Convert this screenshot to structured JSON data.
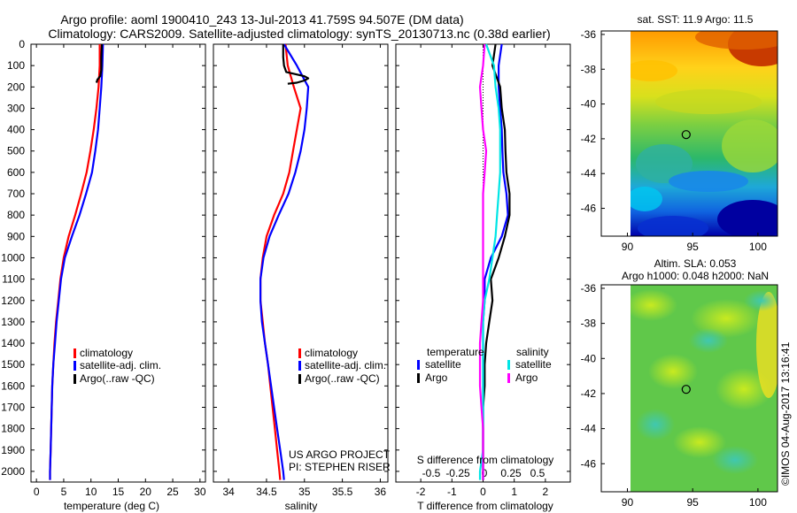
{
  "header": {
    "line1": "Argo profile: aoml 1900410_243 13-Jul-2013 41.759S 94.507E (DM data)",
    "line2": "Climatology: CARS2009. Satellite-adjusted climatology: synTS_20130713.nc (0.38d earlier)"
  },
  "credits": {
    "project": "US ARGO PROJECT",
    "pi": "PI: STEPHEN RISER",
    "watermark": "©IMOS 04-Aug-2017 13:16:41"
  },
  "colors": {
    "climatology": "#ff0000",
    "satellite": "#0000ff",
    "argo": "#000000",
    "argo_salinity": "#ff00ff",
    "satellite_salinity": "#00e5e5"
  },
  "chart_data": [
    {
      "type": "line",
      "xlabel": "temperature (deg C)",
      "xlim": [
        -1,
        31
      ],
      "ylim": [
        2050,
        0
      ],
      "xticks": [
        0,
        5,
        10,
        15,
        20,
        25,
        30
      ],
      "yticks": [
        0,
        100,
        200,
        300,
        400,
        500,
        600,
        700,
        800,
        900,
        1000,
        1100,
        1200,
        1300,
        1400,
        1500,
        1600,
        1700,
        1800,
        1900,
        2000
      ],
      "legend": {
        "placement": "lower-right",
        "entries": [
          "climatology",
          "satellite-adj. clim.",
          "Argo(..raw -QC)"
        ]
      },
      "series": [
        {
          "name": "climatology",
          "color": "#ff0000",
          "x": [
            11.6,
            11.6,
            11.4,
            11.0,
            10.5,
            9.9,
            9.2,
            8.2,
            7.1,
            5.9,
            5.0,
            4.4,
            4.0,
            3.6,
            3.3,
            3.1,
            2.9,
            2.8,
            2.7,
            2.6,
            2.5,
            2.5
          ],
          "y": [
            0,
            100,
            200,
            300,
            400,
            500,
            600,
            700,
            800,
            900,
            1000,
            1100,
            1200,
            1300,
            1400,
            1500,
            1600,
            1700,
            1800,
            1900,
            2000,
            2040
          ]
        },
        {
          "name": "satellite-adj. clim.",
          "color": "#0000ff",
          "x": [
            12.2,
            12.1,
            11.9,
            11.6,
            11.3,
            10.8,
            10.2,
            9.1,
            7.9,
            6.5,
            5.2,
            4.5,
            4.1,
            3.7,
            3.4,
            3.1,
            2.9,
            2.8,
            2.7,
            2.6,
            2.5,
            2.5
          ],
          "y": [
            0,
            100,
            200,
            300,
            400,
            500,
            600,
            700,
            800,
            900,
            1000,
            1100,
            1200,
            1300,
            1400,
            1500,
            1600,
            1700,
            1800,
            1900,
            2000,
            2040
          ]
        },
        {
          "name": "Argo(..raw -QC)",
          "color": "#000000",
          "x": [
            12.0,
            11.9,
            11.9,
            11.7,
            11.5,
            11.4,
            11.2,
            11.0
          ],
          "y": [
            0,
            60,
            120,
            150,
            155,
            160,
            165,
            180
          ]
        }
      ]
    },
    {
      "type": "line",
      "xlabel": "salinity",
      "xlim": [
        33.8,
        36.1
      ],
      "ylim": [
        2050,
        0
      ],
      "xticks": [
        34,
        34.5,
        35,
        35.5,
        36
      ],
      "legend": {
        "placement": "lower-right",
        "entries": [
          "climatology",
          "satellite-adj. clim.",
          "Argo(..raw -QC)"
        ]
      },
      "series": [
        {
          "name": "climatology",
          "color": "#ff0000",
          "x": [
            34.75,
            34.78,
            34.86,
            34.95,
            34.9,
            34.85,
            34.8,
            34.72,
            34.6,
            34.5,
            34.45,
            34.42,
            34.42,
            34.45,
            34.48,
            34.52,
            34.55,
            34.58,
            34.61,
            34.64,
            34.67,
            34.68
          ],
          "y": [
            0,
            100,
            200,
            300,
            400,
            500,
            600,
            700,
            800,
            900,
            1000,
            1100,
            1200,
            1300,
            1400,
            1500,
            1600,
            1700,
            1800,
            1900,
            2000,
            2040
          ]
        },
        {
          "name": "satellite-adj. clim.",
          "color": "#0000ff",
          "x": [
            34.73,
            34.9,
            35.05,
            35.03,
            35.0,
            34.95,
            34.88,
            34.79,
            34.66,
            34.54,
            34.46,
            34.42,
            34.42,
            34.44,
            34.48,
            34.52,
            34.56,
            34.6,
            34.64,
            34.68,
            34.72,
            34.73
          ],
          "y": [
            0,
            100,
            200,
            300,
            400,
            500,
            600,
            700,
            800,
            900,
            1000,
            1100,
            1200,
            1300,
            1400,
            1500,
            1600,
            1700,
            1800,
            1900,
            2000,
            2040
          ]
        },
        {
          "name": "Argo(..raw -QC)",
          "color": "#000000",
          "x": [
            34.72,
            34.72,
            34.73,
            34.76,
            35.0,
            35.05,
            35.0,
            34.9,
            34.78
          ],
          "y": [
            0,
            60,
            100,
            130,
            150,
            160,
            170,
            180,
            185
          ]
        }
      ]
    },
    {
      "type": "line",
      "xlabel": "T difference from climatology",
      "xlabel_top": "S difference from climatology",
      "xlim": [
        -2.8,
        2.8
      ],
      "ylim": [
        2050,
        0
      ],
      "xticks": [
        -2,
        -1,
        0,
        1,
        2
      ],
      "top_ticks": [
        "-0.5",
        "-0.25",
        "0",
        "0.25",
        "0.5"
      ],
      "legend": {
        "placement": "lower-middle",
        "groups": [
          {
            "title": "temperature",
            "entries": [
              "satellite",
              "Argo"
            ]
          },
          {
            "title": "salinity",
            "entries": [
              "satellite",
              "Argo"
            ]
          }
        ]
      },
      "series": [
        {
          "name": "temperature satellite",
          "color": "#0000ff",
          "x": [
            0.6,
            0.5,
            0.5,
            0.55,
            0.6,
            0.62,
            0.65,
            0.75,
            0.8,
            0.6,
            0.25,
            0.05,
            0.05,
            0.0,
            0.0,
            0.0,
            0.0,
            0.0,
            0.0,
            0.0,
            0.0,
            0.0
          ],
          "y": [
            0,
            100,
            200,
            300,
            400,
            500,
            600,
            700,
            800,
            900,
            1000,
            1100,
            1200,
            1300,
            1400,
            1500,
            1600,
            1700,
            1800,
            1900,
            2000,
            2040
          ]
        },
        {
          "name": "temperature Argo",
          "color": "#000000",
          "x": [
            0.4,
            0.3,
            0.55,
            0.6,
            0.7,
            0.72,
            0.75,
            0.85,
            0.85,
            0.7,
            0.5,
            0.25,
            0.3,
            0.2,
            0.1,
            0.05,
            0.05,
            0.0,
            0.0,
            0.0,
            0.0,
            0.0
          ],
          "y": [
            0,
            100,
            200,
            300,
            400,
            500,
            600,
            700,
            800,
            900,
            1000,
            1100,
            1200,
            1300,
            1400,
            1500,
            1600,
            1700,
            1800,
            1900,
            2000,
            2040
          ]
        },
        {
          "name": "salinity satellite",
          "color": "#00e5e5",
          "x": [
            0.1,
            0.35,
            0.4,
            0.5,
            0.55,
            0.55,
            0.55,
            0.5,
            0.45,
            0.4,
            0.3,
            0.2,
            0.05,
            0.0,
            0.0,
            0.0,
            0.0,
            0.0,
            0.0,
            0.0,
            -0.1,
            -0.1
          ],
          "y": [
            0,
            100,
            200,
            300,
            400,
            500,
            600,
            700,
            800,
            900,
            1000,
            1100,
            1200,
            1300,
            1400,
            1500,
            1600,
            1700,
            1800,
            1900,
            2000,
            2040
          ]
        },
        {
          "name": "salinity Argo",
          "color": "#ff00ff",
          "x": [
            0.05,
            0.0,
            -0.1,
            -0.05,
            0.0,
            0.1,
            0.05,
            0.0,
            0.0,
            0.0,
            0.0,
            0.0,
            0.0,
            -0.05,
            -0.1,
            -0.1,
            -0.1,
            -0.05,
            0.0,
            0.0,
            0.0,
            0.0
          ],
          "y": [
            0,
            100,
            200,
            300,
            400,
            500,
            600,
            700,
            800,
            900,
            1000,
            1100,
            1200,
            1300,
            1400,
            1500,
            1600,
            1700,
            1800,
            1900,
            2000,
            2040
          ]
        }
      ]
    },
    {
      "type": "heatmap",
      "title": "sat. SST: 11.9 Argo: 11.5",
      "xlim": [
        88,
        101.5
      ],
      "ylim": [
        -47.6,
        -35.8
      ],
      "xticks": [
        90,
        95,
        100
      ],
      "yticks": [
        -36,
        -38,
        -40,
        -42,
        -44,
        -46
      ],
      "marker": {
        "lon": 94.5,
        "lat": -41.76
      }
    },
    {
      "type": "heatmap",
      "title": "Altim. SLA: 0.053",
      "subtitle": "Argo h1000: 0.048 h2000: NaN",
      "xlim": [
        88,
        101.5
      ],
      "ylim": [
        -47.6,
        -35.8
      ],
      "xticks": [
        90,
        95,
        100
      ],
      "yticks": [
        -36,
        -38,
        -40,
        -42,
        -44,
        -46
      ],
      "marker": {
        "lon": 94.5,
        "lat": -41.76
      }
    }
  ]
}
